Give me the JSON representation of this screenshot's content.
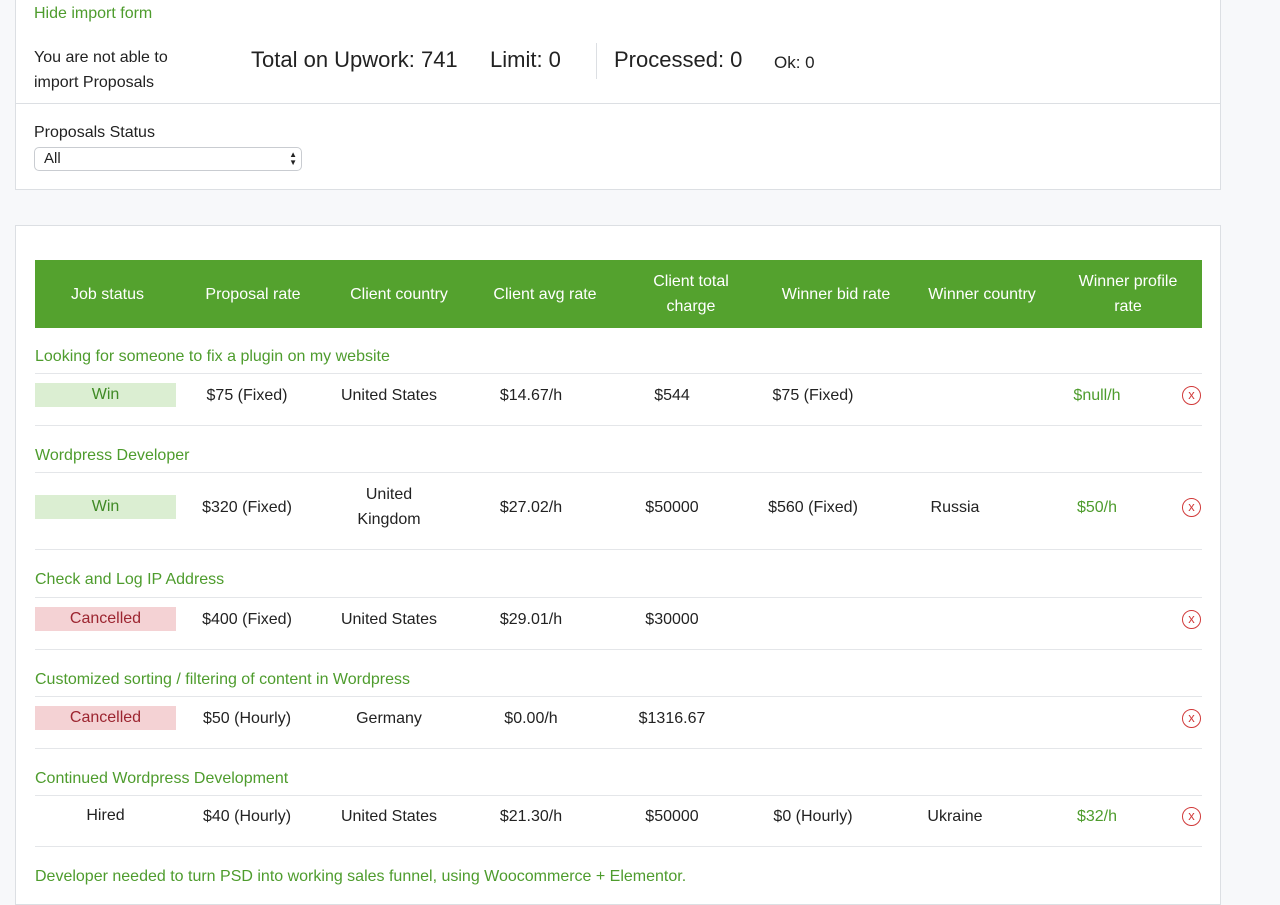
{
  "import_panel": {
    "hide_link": "Hide import form",
    "warning": "You are not able to import Proposals",
    "total": "Total on Upwork: 741",
    "limit": "Limit: 0",
    "processed": "Processed: 0",
    "ok": "Ok: 0",
    "status_label": "Proposals Status",
    "status_value": "All"
  },
  "colors": {
    "accent": "#54a22e",
    "link": "#4e9c2d",
    "win_bg": "#dbeed2",
    "cancel_bg": "#f4d2d4",
    "delete": "#d13a3a"
  },
  "table": {
    "headers": [
      "Job status",
      "Proposal rate",
      "Client country",
      "Client avg rate",
      "Client total charge",
      "Winner bid rate",
      "Winner country",
      "Winner profile rate"
    ],
    "rows": [
      {
        "title": "Looking for someone to fix a plugin on my website",
        "status": "Win",
        "proposal_rate": "$75 (Fixed)",
        "client_country": "United States",
        "client_avg_rate": "$14.67/h",
        "client_total_charge": "$544",
        "winner_bid_rate": "$75 (Fixed)",
        "winner_country": "",
        "winner_profile_rate": "$null/h",
        "delete": "x"
      },
      {
        "title": "Wordpress Developer",
        "status": "Win",
        "proposal_rate": "$320 (Fixed)",
        "client_country": "United Kingdom",
        "client_avg_rate": "$27.02/h",
        "client_total_charge": "$50000",
        "winner_bid_rate": "$560 (Fixed)",
        "winner_country": "Russia",
        "winner_profile_rate": "$50/h",
        "delete": "x"
      },
      {
        "title": "Check and Log IP Address",
        "status": "Cancelled",
        "proposal_rate": "$400 (Fixed)",
        "client_country": "United States",
        "client_avg_rate": "$29.01/h",
        "client_total_charge": "$30000",
        "winner_bid_rate": "",
        "winner_country": "",
        "winner_profile_rate": "",
        "delete": "x"
      },
      {
        "title": "Customized sorting / filtering of content in Wordpress",
        "status": "Cancelled",
        "proposal_rate": "$50 (Hourly)",
        "client_country": "Germany",
        "client_avg_rate": "$0.00/h",
        "client_total_charge": "$1316.67",
        "winner_bid_rate": "",
        "winner_country": "",
        "winner_profile_rate": "",
        "delete": "x"
      },
      {
        "title": "Continued Wordpress Development",
        "status": "Hired",
        "proposal_rate": "$40 (Hourly)",
        "client_country": "United States",
        "client_avg_rate": "$21.30/h",
        "client_total_charge": "$50000",
        "winner_bid_rate": "$0 (Hourly)",
        "winner_country": "Ukraine",
        "winner_profile_rate": "$32/h",
        "delete": "x"
      },
      {
        "title": "Developer needed to turn PSD into working sales funnel, using Woocommerce + Elementor."
      }
    ]
  }
}
